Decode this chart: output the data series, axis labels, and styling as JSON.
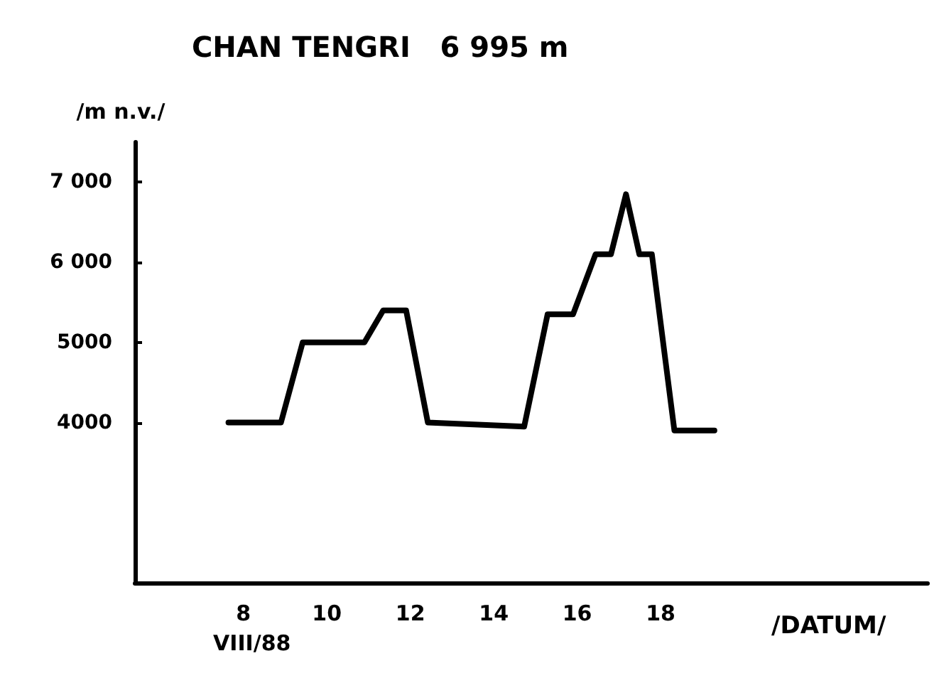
{
  "chart_data": {
    "type": "line",
    "title": "CHAN TENGRI   6 995 m",
    "xlabel": "/DATUM/",
    "ylabel": "/m n.v./",
    "annotations": [
      "VIII/88"
    ],
    "x": [
      7.64,
      8.9,
      9.42,
      10.9,
      11.35,
      11.9,
      12.42,
      14.73,
      15.29,
      15.9,
      16.44,
      16.81,
      17.17,
      17.49,
      17.79,
      18.33,
      19.29
    ],
    "series": [
      {
        "color": "#000000",
        "values": [
          4000,
          4000,
          5000,
          5000,
          5400,
          5400,
          4000,
          3950,
          5350,
          5350,
          6100,
          6100,
          6850,
          6100,
          6100,
          3900,
          3900
        ]
      }
    ],
    "xlim": [
      5.4,
      24.4
    ],
    "xticks": [
      8,
      10,
      12,
      14,
      16,
      18
    ],
    "ylim": [
      2000,
      7500
    ],
    "yticks": [
      {
        "value": 4000,
        "label": "4000"
      },
      {
        "value": 5000,
        "label": "5000"
      },
      {
        "value": 6000,
        "label": "6 000"
      },
      {
        "value": 7000,
        "label": "7 000"
      }
    ],
    "grid": false,
    "marker": "none",
    "line_style": "solid"
  }
}
